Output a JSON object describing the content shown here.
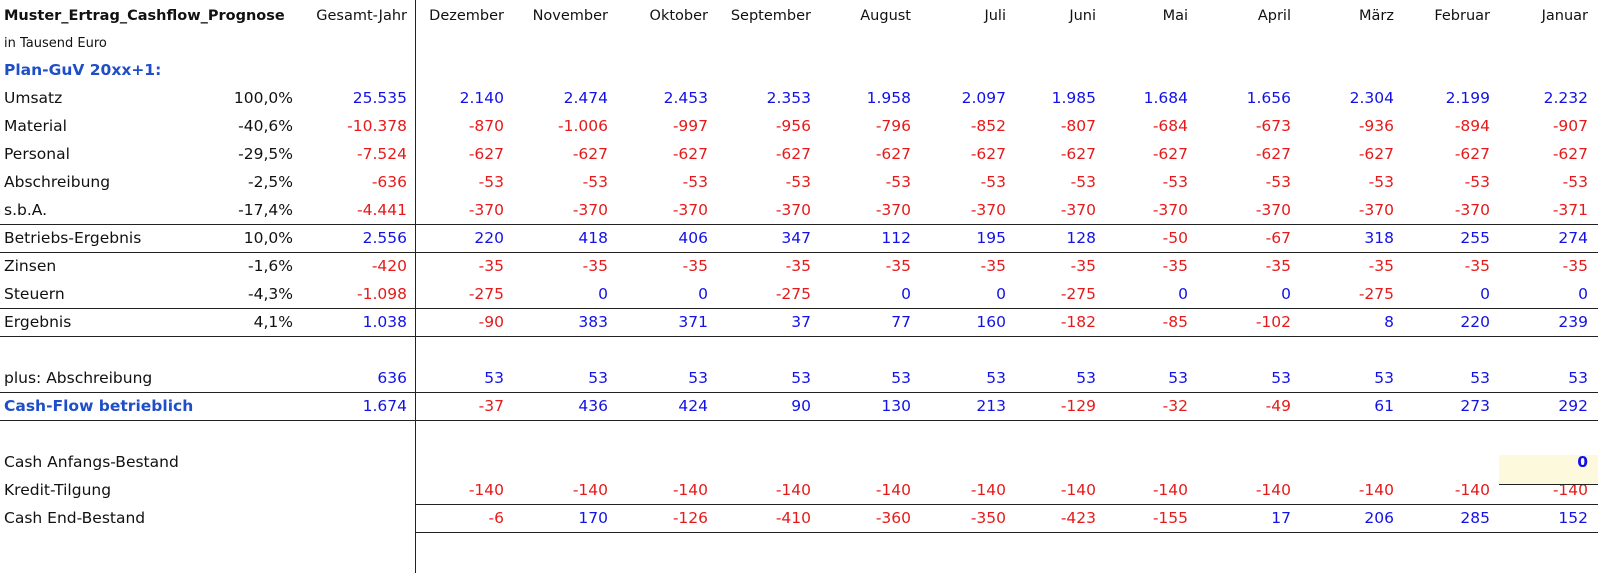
{
  "sheet": {
    "title": "Muster_Ertrag_Cashflow_Prognose",
    "total_header": "Gesamt-Jahr",
    "months": [
      "Dezember",
      "November",
      "Oktober",
      "September",
      "August",
      "Juli",
      "Juni",
      "Mai",
      "April",
      "März",
      "Februar",
      "Januar"
    ],
    "unit_note": "in Tausend Euro",
    "section_guv": "Plan-GuV 20xx+1:",
    "rows": [
      {
        "key": "umsatz",
        "label": "Umsatz",
        "pct": "100,0%",
        "total": "25.535",
        "values": [
          "2.140",
          "2.474",
          "2.453",
          "2.353",
          "1.958",
          "2.097",
          "1.985",
          "1.684",
          "1.656",
          "2.304",
          "2.199",
          "2.232"
        ]
      },
      {
        "key": "material",
        "label": "Material",
        "pct": "-40,6%",
        "total": "-10.378",
        "values": [
          "-870",
          "-1.006",
          "-997",
          "-956",
          "-796",
          "-852",
          "-807",
          "-684",
          "-673",
          "-936",
          "-894",
          "-907"
        ]
      },
      {
        "key": "personal",
        "label": "Personal",
        "pct": "-29,5%",
        "total": "-7.524",
        "values": [
          "-627",
          "-627",
          "-627",
          "-627",
          "-627",
          "-627",
          "-627",
          "-627",
          "-627",
          "-627",
          "-627",
          "-627"
        ]
      },
      {
        "key": "abschreibung",
        "label": "Abschreibung",
        "pct": "-2,5%",
        "total": "-636",
        "values": [
          "-53",
          "-53",
          "-53",
          "-53",
          "-53",
          "-53",
          "-53",
          "-53",
          "-53",
          "-53",
          "-53",
          "-53"
        ]
      },
      {
        "key": "sba",
        "label": "s.b.A.",
        "pct": "-17,4%",
        "total": "-4.441",
        "values": [
          "-370",
          "-370",
          "-370",
          "-370",
          "-370",
          "-370",
          "-370",
          "-370",
          "-370",
          "-370",
          "-370",
          "-371"
        ]
      },
      {
        "key": "betriebsergebnis",
        "label": "Betriebs-Ergebnis",
        "pct": "10,0%",
        "total": "2.556",
        "values": [
          "220",
          "418",
          "406",
          "347",
          "112",
          "195",
          "128",
          "-50",
          "-67",
          "318",
          "255",
          "274"
        ]
      },
      {
        "key": "zinsen",
        "label": "Zinsen",
        "pct": "-1,6%",
        "total": "-420",
        "values": [
          "-35",
          "-35",
          "-35",
          "-35",
          "-35",
          "-35",
          "-35",
          "-35",
          "-35",
          "-35",
          "-35",
          "-35"
        ]
      },
      {
        "key": "steuern",
        "label": "Steuern",
        "pct": "-4,3%",
        "total": "-1.098",
        "values": [
          "-275",
          "0",
          "0",
          "-275",
          "0",
          "0",
          "-275",
          "0",
          "0",
          "-275",
          "0",
          "0"
        ]
      },
      {
        "key": "ergebnis",
        "label": "Ergebnis",
        "pct": "4,1%",
        "total": "1.038",
        "values": [
          "-90",
          "383",
          "371",
          "37",
          "77",
          "160",
          "-182",
          "-85",
          "-102",
          "8",
          "220",
          "239"
        ]
      },
      {
        "key": "plus_abschreibung",
        "label": "plus: Abschreibung",
        "pct": "",
        "total": "636",
        "values": [
          "53",
          "53",
          "53",
          "53",
          "53",
          "53",
          "53",
          "53",
          "53",
          "53",
          "53",
          "53"
        ]
      },
      {
        "key": "cashflow",
        "label": "Cash-Flow betrieblich",
        "pct": "",
        "total": "1.674",
        "values": [
          "-37",
          "436",
          "424",
          "90",
          "130",
          "213",
          "-129",
          "-32",
          "-49",
          "61",
          "273",
          "292"
        ]
      },
      {
        "key": "cash_anfang",
        "label": "Cash Anfangs-Bestand",
        "pct": "",
        "total": "",
        "values": [
          "",
          "",
          "",
          "",
          "",
          "",
          "",
          "",
          "",
          "",
          "",
          "0"
        ]
      },
      {
        "key": "kredit_tilgung",
        "label": "Kredit-Tilgung",
        "pct": "",
        "total": "",
        "values": [
          "-140",
          "-140",
          "-140",
          "-140",
          "-140",
          "-140",
          "-140",
          "-140",
          "-140",
          "-140",
          "-140",
          "-140"
        ]
      },
      {
        "key": "cash_end",
        "label": "Cash End-Bestand",
        "pct": "",
        "total": "",
        "values": [
          "-6",
          "170",
          "-126",
          "-410",
          "-360",
          "-350",
          "-423",
          "-155",
          "17",
          "206",
          "285",
          "152"
        ]
      }
    ]
  }
}
